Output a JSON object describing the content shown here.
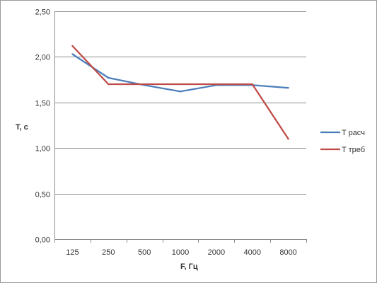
{
  "chart_data": {
    "type": "line",
    "categories": [
      "125",
      "250",
      "500",
      "1000",
      "2000",
      "4000",
      "8000"
    ],
    "series": [
      {
        "name": "T расч",
        "values": [
          2.03,
          1.77,
          1.69,
          1.62,
          1.69,
          1.69,
          1.66
        ],
        "color": "#4a7ebb"
      },
      {
        "name": "T треб",
        "values": [
          2.12,
          1.7,
          1.7,
          1.7,
          1.7,
          1.7,
          1.1
        ],
        "color": "#be4b48"
      }
    ],
    "xlabel": "F, Гц",
    "ylabel": "T, c",
    "ylim": [
      0,
      2.5
    ],
    "yticks": [
      "0,00",
      "0,50",
      "1,00",
      "1,50",
      "2,00",
      "2,50"
    ],
    "grid": true,
    "legend": "right"
  }
}
